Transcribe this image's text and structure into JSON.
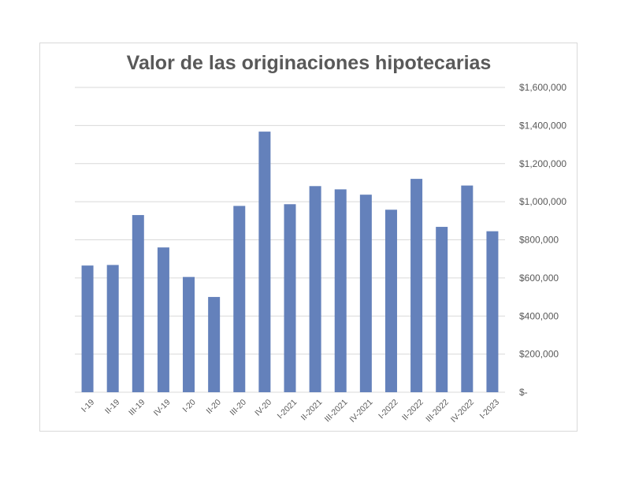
{
  "chart_data": {
    "type": "bar",
    "title": "Valor de las originaciones hipotecarias",
    "xlabel": "",
    "ylabel": "",
    "categories": [
      "I-19",
      "II-19",
      "III-19",
      "IV-19",
      "I-20",
      "II-20",
      "III-20",
      "IV-20",
      "I-2021",
      "II-2021",
      "III-2021",
      "IV-2021",
      "I-2022",
      "II-2022",
      "III-2022",
      "IV-2022",
      "I-2023"
    ],
    "series": [
      {
        "values": [
          665000,
          668000,
          930000,
          760000,
          605000,
          500000,
          978000,
          1368000,
          987000,
          1082000,
          1065000,
          1037000,
          958000,
          1120000,
          868000,
          1085000,
          845000
        ],
        "color": "#6481bb"
      }
    ],
    "ylim": [
      0,
      1600000
    ],
    "yticks": [
      0,
      200000,
      400000,
      600000,
      800000,
      1000000,
      1200000,
      1400000,
      1600000
    ],
    "ytick_labels": [
      "$-",
      "$200,000",
      "$400,000",
      "$600,000",
      "$800,000",
      "$1,000,000",
      "$1,200,000",
      "$1,400,000",
      "$1,600,000"
    ],
    "y_axis_side": "right",
    "grid": true,
    "gridline_color": "#d9d9d9",
    "legend": "none"
  }
}
